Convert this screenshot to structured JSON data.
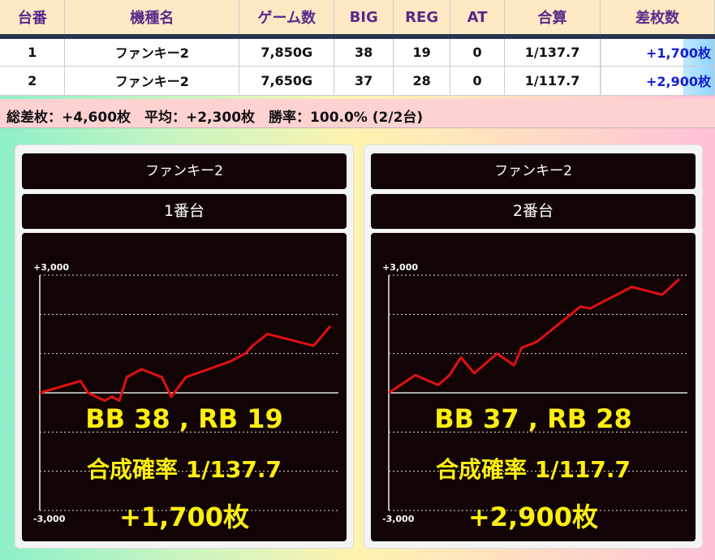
{
  "table": {
    "headers": [
      "台番",
      "機種名",
      "ゲーム数",
      "BIG",
      "REG",
      "AT",
      "合算",
      "差枚数"
    ],
    "rows": [
      [
        "1",
        "ファンキー2",
        "7,850G",
        "38",
        "19",
        "0",
        "1/137.7",
        "+1,700枚"
      ],
      [
        "2",
        "ファンキー2",
        "7,650G",
        "37",
        "28",
        "0",
        "1/117.7",
        "+2,900枚"
      ]
    ]
  },
  "summary": "総差枚：+4,600枚　平均：+2,300枚　勝率：100.0% (2/2台)",
  "panels": [
    {
      "machine": "ファンキー2",
      "unit": "1番台",
      "bb_rb": "BB 38 , RB 19",
      "prob": "合成確率  1/137.7",
      "diff": "+1,700枚"
    },
    {
      "machine": "ファンキー2",
      "unit": "2番台",
      "bb_rb": "BB 37 , RB 28",
      "prob": "合成確率  1/117.7",
      "diff": "+2,900枚"
    }
  ],
  "chart_data": [
    {
      "type": "line",
      "ylim": [
        -3000,
        3000
      ],
      "yticks": [
        "+3,000",
        "-3,000"
      ],
      "grid": true,
      "line_color": "#e01010",
      "xlim": [
        0,
        7850
      ],
      "x": [
        0,
        1100,
        1300,
        1750,
        1950,
        2150,
        2350,
        2750,
        3300,
        3550,
        3950,
        5150,
        5550,
        5750,
        6150,
        7400,
        7850
      ],
      "y": [
        0,
        300,
        0,
        -200,
        -100,
        -200,
        400,
        600,
        400,
        -100,
        400,
        800,
        1000,
        1200,
        1500,
        1200,
        1700
      ]
    },
    {
      "type": "line",
      "ylim": [
        -3000,
        3000
      ],
      "yticks": [
        "+3,000",
        "-3,000"
      ],
      "grid": true,
      "line_color": "#e01010",
      "xlim": [
        0,
        7650
      ],
      "x": [
        0,
        700,
        1300,
        1600,
        1900,
        2250,
        2850,
        3300,
        3500,
        3900,
        5050,
        5300,
        5600,
        6400,
        7200,
        7650
      ],
      "y": [
        0,
        450,
        200,
        450,
        900,
        500,
        1000,
        700,
        1150,
        1300,
        2200,
        2150,
        2300,
        2700,
        2500,
        2900
      ]
    }
  ]
}
